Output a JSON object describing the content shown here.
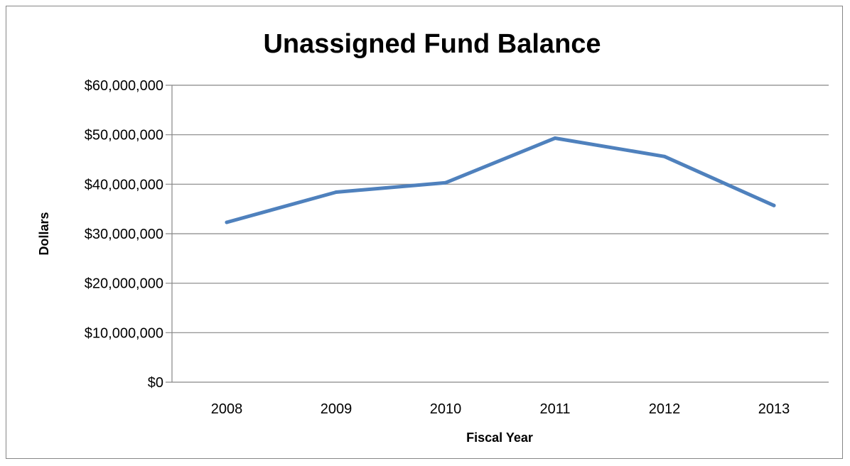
{
  "chart_data": {
    "type": "line",
    "title": "Unassigned Fund Balance",
    "xlabel": "Fiscal Year",
    "ylabel": "Dollars",
    "categories": [
      "2008",
      "2009",
      "2010",
      "2011",
      "2012",
      "2013"
    ],
    "series": [
      {
        "values": [
          32300000,
          38400000,
          40300000,
          49300000,
          45600000,
          35700000
        ]
      }
    ],
    "ylim": [
      0,
      60000000
    ],
    "yticks": [
      0,
      10000000,
      20000000,
      30000000,
      40000000,
      50000000,
      60000000
    ],
    "ytick_labels": [
      "$0",
      "$10,000,000",
      "$20,000,000",
      "$30,000,000",
      "$40,000,000",
      "$50,000,000",
      "$60,000,000"
    ],
    "grid": true,
    "legend": "none",
    "colors": {
      "series": "#4f81bd",
      "gridline": "#868686"
    }
  }
}
